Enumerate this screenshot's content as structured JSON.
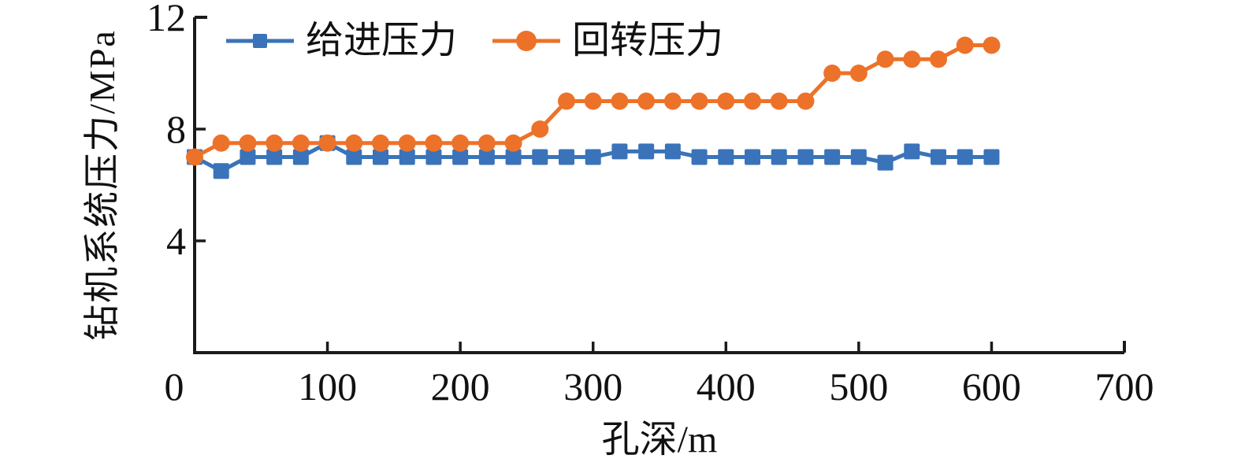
{
  "figure": {
    "background": "#ffffff",
    "axis_color": "#1b1b1b",
    "text_color": "#111111"
  },
  "chart_data": {
    "type": "line",
    "title": "",
    "xlabel": "孔深/m",
    "ylabel": "钻机系统压力/MPa",
    "xlim": [
      0,
      700
    ],
    "ylim": [
      0,
      12
    ],
    "x_ticks": [
      0,
      100,
      200,
      300,
      400,
      500,
      600,
      700
    ],
    "y_ticks": [
      0,
      4,
      8,
      12
    ],
    "grid": false,
    "legend_position": "top-left-inside",
    "x": [
      0,
      20,
      40,
      60,
      80,
      100,
      120,
      140,
      160,
      180,
      200,
      220,
      240,
      260,
      280,
      300,
      320,
      340,
      360,
      380,
      400,
      420,
      440,
      460,
      480,
      500,
      520,
      540,
      560,
      580,
      600
    ],
    "series": [
      {
        "name": "给进压力",
        "marker": "square",
        "color": "#3A73B9",
        "values": [
          7,
          6.5,
          7,
          7,
          7,
          7.5,
          7,
          7,
          7,
          7,
          7,
          7,
          7,
          7,
          7,
          7,
          7.2,
          7.2,
          7.2,
          7,
          7,
          7,
          7,
          7,
          7,
          7,
          6.8,
          7.2,
          7,
          7,
          7
        ]
      },
      {
        "name": "回转压力",
        "marker": "circle",
        "color": "#ED7229",
        "values": [
          7,
          7.5,
          7.5,
          7.5,
          7.5,
          7.5,
          7.5,
          7.5,
          7.5,
          7.5,
          7.5,
          7.5,
          7.5,
          8,
          9,
          9,
          9,
          9,
          9,
          9,
          9,
          9,
          9,
          9,
          10,
          10,
          10.5,
          10.5,
          10.5,
          11,
          11
        ]
      }
    ]
  }
}
